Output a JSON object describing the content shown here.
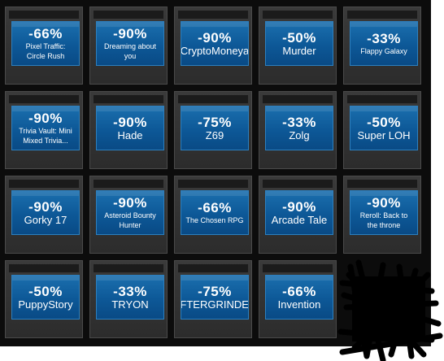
{
  "tiles": [
    {
      "discount": "-66%",
      "name": "Pixel Traffic: Circle Rush",
      "small": true
    },
    {
      "discount": "-90%",
      "name": "Dreaming about you",
      "small": true
    },
    {
      "discount": "-90%",
      "name": "CryptoMoneya",
      "small": false
    },
    {
      "discount": "-50%",
      "name": "Murder",
      "small": false
    },
    {
      "discount": "-33%",
      "name": "Flappy Galaxy",
      "small": true
    },
    {
      "discount": "-90%",
      "name": "Trivia Vault: Mini Mixed Trivia...",
      "small": true
    },
    {
      "discount": "-90%",
      "name": "Hade",
      "small": false
    },
    {
      "discount": "-75%",
      "name": "Z69",
      "small": false
    },
    {
      "discount": "-33%",
      "name": "Zolg",
      "small": false
    },
    {
      "discount": "-50%",
      "name": "Super LOH",
      "small": false
    },
    {
      "discount": "-90%",
      "name": "Gorky 17",
      "small": false
    },
    {
      "discount": "-90%",
      "name": "Asteroid Bounty Hunter",
      "small": true
    },
    {
      "discount": "-66%",
      "name": "The Chosen RPG",
      "small": true
    },
    {
      "discount": "-90%",
      "name": "Arcade Tale",
      "small": false
    },
    {
      "discount": "-90%",
      "name": "Reroll: Back to the throne",
      "small": true
    },
    {
      "discount": "-50%",
      "name": "PuppyStory",
      "small": false
    },
    {
      "discount": "-33%",
      "name": "TRYON",
      "small": false
    },
    {
      "discount": "-75%",
      "name": "AFTERGRINDER",
      "small": false
    },
    {
      "discount": "-66%",
      "name": "Invention",
      "small": false
    }
  ]
}
